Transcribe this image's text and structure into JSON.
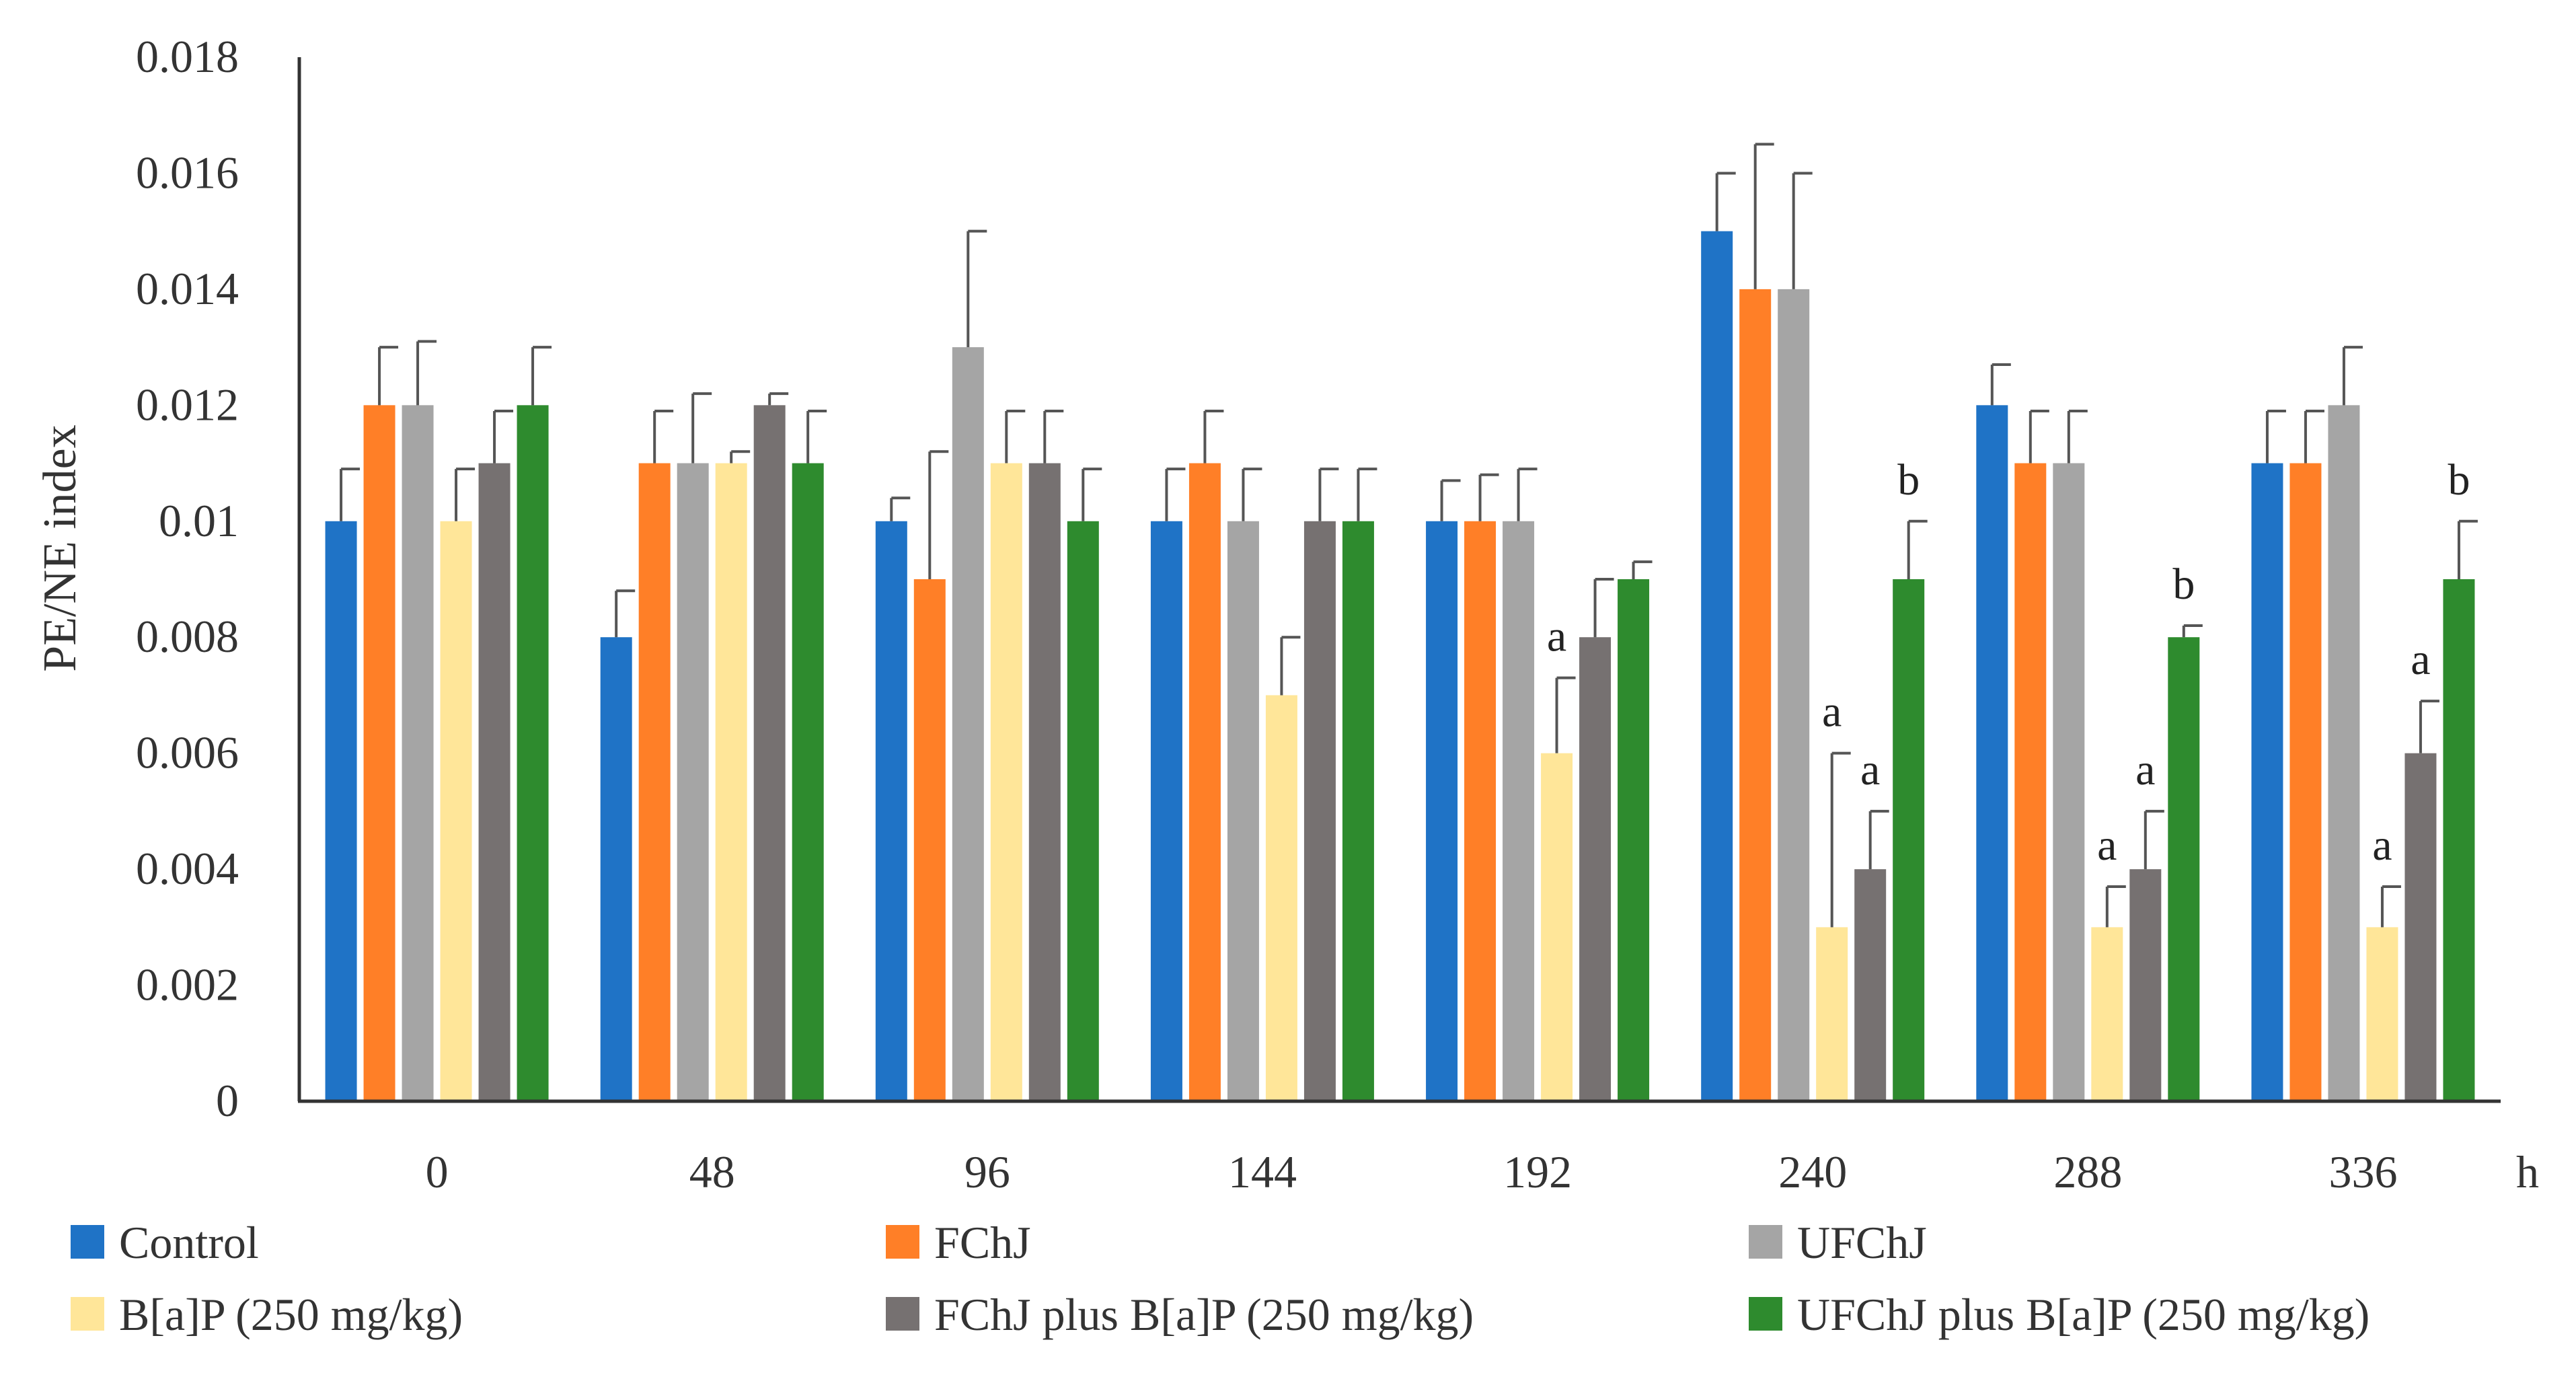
{
  "chart_data": {
    "type": "bar",
    "title": "",
    "xlabel": "",
    "x_unit": "h",
    "ylabel": "PE/NE index",
    "ylim": [
      0,
      0.018
    ],
    "yticks": [
      "0",
      "0.002",
      "0.004",
      "0.006",
      "0.008",
      "0.01",
      "0.012",
      "0.014",
      "0.016",
      "0.018"
    ],
    "grid": false,
    "legend_position": "bottom",
    "categories": [
      "0",
      "48",
      "96",
      "144",
      "192",
      "240",
      "288",
      "336"
    ],
    "series": [
      {
        "name": "Control",
        "color": "#1F73C6",
        "values": [
          0.01,
          0.008,
          0.01,
          0.01,
          0.01,
          0.015,
          0.012,
          0.011
        ],
        "errors": [
          0.0009,
          0.0008,
          0.0004,
          0.0009,
          0.0007,
          0.001,
          0.0007,
          0.0009
        ],
        "labels": [
          "",
          "",
          "",
          "",
          "",
          "",
          "",
          ""
        ]
      },
      {
        "name": "FChJ",
        "color": "#FF7F27",
        "values": [
          0.012,
          0.011,
          0.009,
          0.011,
          0.01,
          0.014,
          0.011,
          0.011
        ],
        "errors": [
          0.001,
          0.0009,
          0.0022,
          0.0009,
          0.0008,
          0.0025,
          0.0009,
          0.0009
        ],
        "labels": [
          "",
          "",
          "",
          "",
          "",
          "",
          "",
          ""
        ]
      },
      {
        "name": "UFChJ",
        "color": "#A5A5A5",
        "values": [
          0.012,
          0.011,
          0.013,
          0.01,
          0.01,
          0.014,
          0.011,
          0.012
        ],
        "errors": [
          0.0011,
          0.0012,
          0.002,
          0.0009,
          0.0009,
          0.002,
          0.0009,
          0.001
        ],
        "labels": [
          "",
          "",
          "",
          "",
          "",
          "",
          "",
          ""
        ]
      },
      {
        "name": "B[a]P (250 mg/kg)",
        "color": "#FFE699",
        "values": [
          0.01,
          0.011,
          0.011,
          0.007,
          0.006,
          0.003,
          0.003,
          0.003
        ],
        "errors": [
          0.0009,
          0.0002,
          0.0009,
          0.001,
          0.0013,
          0.003,
          0.0007,
          0.0007
        ],
        "labels": [
          "",
          "",
          "",
          "",
          "a",
          "a",
          "a",
          "a"
        ]
      },
      {
        "name": "FChJ plus B[a]P (250 mg/kg)",
        "color": "#767171",
        "values": [
          0.011,
          0.012,
          0.011,
          0.01,
          0.008,
          0.004,
          0.004,
          0.006
        ],
        "errors": [
          0.0009,
          0.0002,
          0.0009,
          0.0009,
          0.001,
          0.001,
          0.001,
          0.0009
        ],
        "labels": [
          "",
          "",
          "",
          "",
          "",
          "a",
          "a",
          "a"
        ]
      },
      {
        "name": "UFChJ plus B[a]P (250 mg/kg)",
        "color": "#2E8B2E",
        "values": [
          0.012,
          0.011,
          0.01,
          0.01,
          0.009,
          0.009,
          0.008,
          0.009
        ],
        "errors": [
          0.001,
          0.0009,
          0.0009,
          0.0009,
          0.0003,
          0.001,
          0.0002,
          0.001
        ],
        "labels": [
          "",
          "",
          "",
          "",
          "",
          "b",
          "b",
          "b"
        ]
      }
    ]
  }
}
